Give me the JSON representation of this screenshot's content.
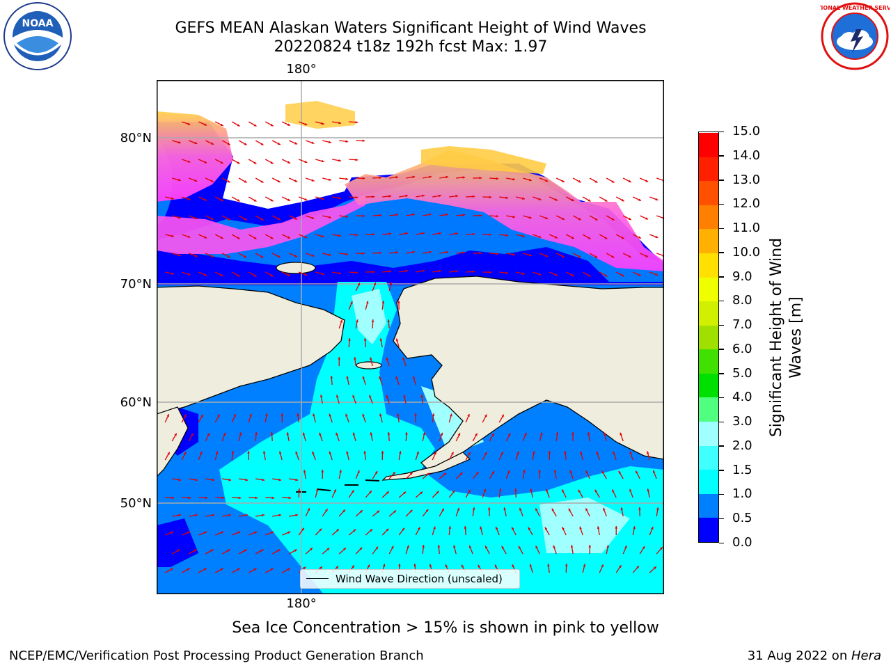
{
  "header": {
    "title_line1": "GEFS MEAN Alaskan Waters Significant Height of Wind Waves",
    "title_line2": "20220824 t18z 192h fcst   Max: 1.97"
  },
  "logos": {
    "left": {
      "text": "NOAA",
      "icon": "noaa-logo"
    },
    "right": {
      "text": "NATIONAL WEATHER SERVICE",
      "icon": "nws-logo"
    }
  },
  "map": {
    "lon_top_label": "180°",
    "lon_bottom_label": "180°",
    "lat_labels": [
      "80°N",
      "70°N",
      "60°N",
      "50°N"
    ],
    "legend_label": "Wind Wave Direction (unscaled)",
    "arrow_color": "#e00000",
    "land_color": "#efedde",
    "grid_color": "#aaaaaa"
  },
  "colorbar": {
    "label_line1": "Significant Height of Wind",
    "label_line2": "Waves [m]",
    "ticks": [
      "0.0",
      "0.5",
      "1.0",
      "1.5",
      "2.0",
      "3.0",
      "4.0",
      "5.0",
      "6.0",
      "7.0",
      "8.0",
      "9.0",
      "10.0",
      "11.0",
      "12.0",
      "13.0",
      "14.0",
      "15.0"
    ],
    "colors": [
      "#0000ff",
      "#0080ff",
      "#00ffff",
      "#40ffff",
      "#a0ffff",
      "#50ff80",
      "#00e000",
      "#40e000",
      "#a0e000",
      "#d0f000",
      "#f0ff00",
      "#ffe000",
      "#ffb000",
      "#ff8000",
      "#ff5000",
      "#ff2000",
      "#ff0000"
    ]
  },
  "notes": {
    "sea_ice": "Sea Ice Concentration > 15% is shown in pink to yellow"
  },
  "footer": {
    "left": "NCEP/EMC/Verification Post Processing Product Generation Branch",
    "date": "31 Aug 2022 on ",
    "machine": "Hera"
  }
}
